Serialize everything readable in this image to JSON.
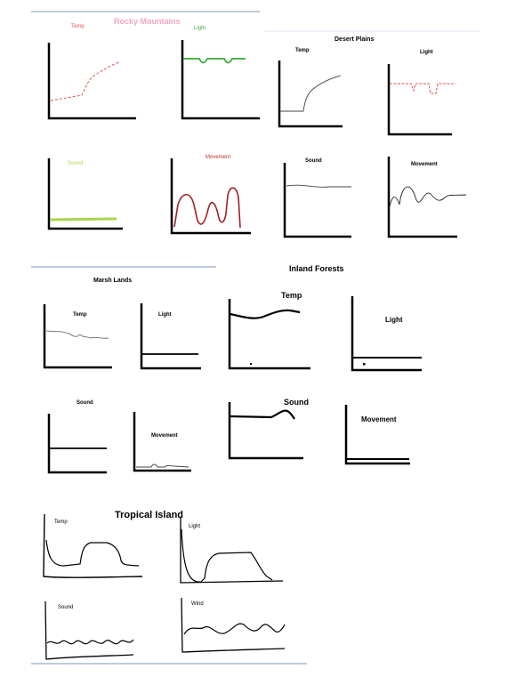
{
  "sections": [
    {
      "title": "Rocky Mountains",
      "title_color": "#f4a6c4",
      "charts": [
        {
          "label": "Temp",
          "color": "#e05050"
        },
        {
          "label": "Light",
          "color": "#3aaa3a"
        },
        {
          "label": "Sound",
          "color": "#a8d64a"
        },
        {
          "label": "Movement",
          "color": "#c03030"
        }
      ]
    },
    {
      "title": "Desert Plains",
      "charts": [
        {
          "label": "Temp"
        },
        {
          "label": "Light",
          "color": "#e05050"
        },
        {
          "label": "Sound"
        },
        {
          "label": "Movement"
        }
      ]
    },
    {
      "title": "Marsh Lands",
      "charts": [
        {
          "label": "Temp"
        },
        {
          "label": "Light"
        },
        {
          "label": "Sound"
        },
        {
          "label": "Movement"
        }
      ]
    },
    {
      "title": "Inland Forests",
      "charts": [
        {
          "label": "Temp"
        },
        {
          "label": "Light"
        },
        {
          "label": "Sound"
        },
        {
          "label": "Movement"
        }
      ]
    },
    {
      "title": "Tropical Island",
      "charts": [
        {
          "label": "Temp"
        },
        {
          "label": "Light"
        },
        {
          "label": "Sound"
        },
        {
          "label": "Wind"
        }
      ]
    }
  ],
  "divider_color": "#a9b8d0"
}
